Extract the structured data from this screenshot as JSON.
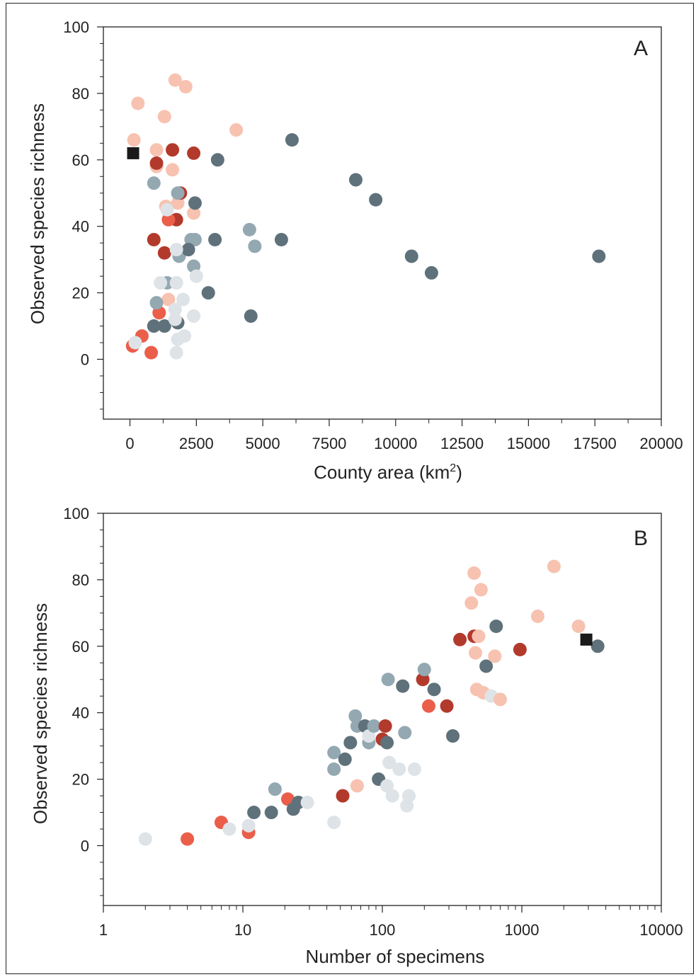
{
  "colors": {
    "light_gray": "#dde3e7",
    "blue_gray": "#94a8b2",
    "dark_slate": "#5f717a",
    "pale_salmon": "#f7c2b0",
    "coral": "#ea5e4a",
    "dark_red": "#b23a2c",
    "reference": "#1a1a1a"
  },
  "chart_data": [
    {
      "type": "scatter",
      "panel": "A",
      "xlabel": "County area (km",
      "xlabel_sup": "2",
      "xlabel_end": ")",
      "ylabel": "Observed species richness",
      "xlim": [
        -1000,
        20000
      ],
      "ylim": [
        -18,
        100
      ],
      "x_ticks": [
        "0",
        "2500",
        "5000",
        "7500",
        "10000",
        "12500",
        "15000",
        "17500",
        "20000"
      ],
      "y_ticks": [
        "0",
        "20",
        "40",
        "60",
        "80",
        "100"
      ],
      "points": [
        {
          "x": 300,
          "y": 77,
          "c": "pale_salmon"
        },
        {
          "x": 150,
          "y": 66,
          "c": "pale_salmon"
        },
        {
          "x": 1300,
          "y": 73,
          "c": "pale_salmon"
        },
        {
          "x": 1700,
          "y": 84,
          "c": "pale_salmon"
        },
        {
          "x": 2100,
          "y": 82,
          "c": "pale_salmon"
        },
        {
          "x": 4000,
          "y": 69,
          "c": "pale_salmon"
        },
        {
          "x": 1000,
          "y": 63,
          "c": "pale_salmon"
        },
        {
          "x": 1000,
          "y": 58,
          "c": "pale_salmon"
        },
        {
          "x": 1600,
          "y": 57,
          "c": "pale_salmon"
        },
        {
          "x": 1800,
          "y": 47,
          "c": "pale_salmon"
        },
        {
          "x": 1350,
          "y": 46,
          "c": "pale_salmon"
        },
        {
          "x": 2400,
          "y": 44,
          "c": "pale_salmon"
        },
        {
          "x": 1450,
          "y": 18,
          "c": "pale_salmon"
        },
        {
          "x": 1000,
          "y": 59,
          "c": "dark_red"
        },
        {
          "x": 1600,
          "y": 63,
          "c": "dark_red"
        },
        {
          "x": 2400,
          "y": 62,
          "c": "dark_red"
        },
        {
          "x": 1900,
          "y": 50,
          "c": "dark_red"
        },
        {
          "x": 1750,
          "y": 42,
          "c": "dark_red"
        },
        {
          "x": 900,
          "y": 36,
          "c": "dark_red"
        },
        {
          "x": 1300,
          "y": 32,
          "c": "dark_red"
        },
        {
          "x": 1450,
          "y": 42,
          "c": "coral"
        },
        {
          "x": 1100,
          "y": 14,
          "c": "coral"
        },
        {
          "x": 100,
          "y": 4,
          "c": "coral"
        },
        {
          "x": 450,
          "y": 7,
          "c": "coral"
        },
        {
          "x": 800,
          "y": 2,
          "c": "coral"
        },
        {
          "x": 900,
          "y": 53,
          "c": "blue_gray"
        },
        {
          "x": 1800,
          "y": 50,
          "c": "blue_gray"
        },
        {
          "x": 2300,
          "y": 36,
          "c": "blue_gray"
        },
        {
          "x": 2450,
          "y": 36,
          "c": "blue_gray"
        },
        {
          "x": 1850,
          "y": 31,
          "c": "blue_gray"
        },
        {
          "x": 2400,
          "y": 28,
          "c": "blue_gray"
        },
        {
          "x": 1400,
          "y": 23,
          "c": "blue_gray"
        },
        {
          "x": 1000,
          "y": 17,
          "c": "blue_gray"
        },
        {
          "x": 4500,
          "y": 39,
          "c": "blue_gray"
        },
        {
          "x": 4700,
          "y": 34,
          "c": "blue_gray"
        },
        {
          "x": 6100,
          "y": 66,
          "c": "dark_slate"
        },
        {
          "x": 3300,
          "y": 60,
          "c": "dark_slate"
        },
        {
          "x": 2450,
          "y": 47,
          "c": "dark_slate"
        },
        {
          "x": 3200,
          "y": 36,
          "c": "dark_slate"
        },
        {
          "x": 2200,
          "y": 33,
          "c": "dark_slate"
        },
        {
          "x": 5700,
          "y": 36,
          "c": "dark_slate"
        },
        {
          "x": 8500,
          "y": 54,
          "c": "dark_slate"
        },
        {
          "x": 9250,
          "y": 48,
          "c": "dark_slate"
        },
        {
          "x": 10600,
          "y": 31,
          "c": "dark_slate"
        },
        {
          "x": 11350,
          "y": 26,
          "c": "dark_slate"
        },
        {
          "x": 17650,
          "y": 31,
          "c": "dark_slate"
        },
        {
          "x": 2950,
          "y": 20,
          "c": "dark_slate"
        },
        {
          "x": 4550,
          "y": 13,
          "c": "dark_slate"
        },
        {
          "x": 900,
          "y": 10,
          "c": "dark_slate"
        },
        {
          "x": 1300,
          "y": 10,
          "c": "dark_slate"
        },
        {
          "x": 1800,
          "y": 11,
          "c": "dark_slate"
        },
        {
          "x": 1400,
          "y": 45,
          "c": "light_gray"
        },
        {
          "x": 1750,
          "y": 33,
          "c": "light_gray"
        },
        {
          "x": 1150,
          "y": 23,
          "c": "light_gray"
        },
        {
          "x": 1750,
          "y": 23,
          "c": "light_gray"
        },
        {
          "x": 2500,
          "y": 25,
          "c": "light_gray"
        },
        {
          "x": 2000,
          "y": 18,
          "c": "light_gray"
        },
        {
          "x": 1700,
          "y": 15,
          "c": "light_gray"
        },
        {
          "x": 1700,
          "y": 12,
          "c": "light_gray"
        },
        {
          "x": 2400,
          "y": 13,
          "c": "light_gray"
        },
        {
          "x": 2050,
          "y": 7,
          "c": "light_gray"
        },
        {
          "x": 1800,
          "y": 6,
          "c": "light_gray"
        },
        {
          "x": 1750,
          "y": 2,
          "c": "light_gray"
        },
        {
          "x": 200,
          "y": 5,
          "c": "light_gray"
        }
      ],
      "reference_point": {
        "x": 120,
        "y": 62
      }
    },
    {
      "type": "scatter",
      "panel": "B",
      "xlabel": "Number of specimens",
      "ylabel": "Observed species richness",
      "xscale": "log",
      "xlim": [
        1,
        10000
      ],
      "ylim": [
        -18,
        100
      ],
      "x_ticks": [
        "1",
        "10",
        "100",
        "1000",
        "10000"
      ],
      "y_ticks": [
        "0",
        "20",
        "40",
        "60",
        "80",
        "100"
      ],
      "points": [
        {
          "x": 2,
          "y": 2,
          "c": "light_gray"
        },
        {
          "x": 4,
          "y": 2,
          "c": "coral"
        },
        {
          "x": 7,
          "y": 7,
          "c": "coral"
        },
        {
          "x": 8,
          "y": 5,
          "c": "light_gray"
        },
        {
          "x": 11,
          "y": 4,
          "c": "coral"
        },
        {
          "x": 11,
          "y": 6,
          "c": "light_gray"
        },
        {
          "x": 12,
          "y": 10,
          "c": "dark_slate"
        },
        {
          "x": 16,
          "y": 10,
          "c": "dark_slate"
        },
        {
          "x": 17,
          "y": 17,
          "c": "blue_gray"
        },
        {
          "x": 21,
          "y": 14,
          "c": "coral"
        },
        {
          "x": 23,
          "y": 11,
          "c": "dark_slate"
        },
        {
          "x": 25,
          "y": 13,
          "c": "dark_slate"
        },
        {
          "x": 29,
          "y": 13,
          "c": "light_gray"
        },
        {
          "x": 45,
          "y": 7,
          "c": "light_gray"
        },
        {
          "x": 45,
          "y": 28,
          "c": "blue_gray"
        },
        {
          "x": 45,
          "y": 23,
          "c": "blue_gray"
        },
        {
          "x": 52,
          "y": 15,
          "c": "dark_red"
        },
        {
          "x": 54,
          "y": 26,
          "c": "dark_slate"
        },
        {
          "x": 59,
          "y": 31,
          "c": "dark_slate"
        },
        {
          "x": 64,
          "y": 39,
          "c": "blue_gray"
        },
        {
          "x": 66,
          "y": 36,
          "c": "blue_gray"
        },
        {
          "x": 66,
          "y": 18,
          "c": "pale_salmon"
        },
        {
          "x": 75,
          "y": 36,
          "c": "dark_slate"
        },
        {
          "x": 80,
          "y": 31,
          "c": "blue_gray"
        },
        {
          "x": 80,
          "y": 33,
          "c": "light_gray"
        },
        {
          "x": 87,
          "y": 36,
          "c": "blue_gray"
        },
        {
          "x": 94,
          "y": 20,
          "c": "dark_slate"
        },
        {
          "x": 100,
          "y": 32,
          "c": "dark_red"
        },
        {
          "x": 105,
          "y": 36,
          "c": "dark_red"
        },
        {
          "x": 108,
          "y": 31,
          "c": "dark_slate"
        },
        {
          "x": 110,
          "y": 50,
          "c": "blue_gray"
        },
        {
          "x": 108,
          "y": 18,
          "c": "light_gray"
        },
        {
          "x": 112,
          "y": 25,
          "c": "light_gray"
        },
        {
          "x": 118,
          "y": 15,
          "c": "light_gray"
        },
        {
          "x": 132,
          "y": 23,
          "c": "light_gray"
        },
        {
          "x": 140,
          "y": 48,
          "c": "dark_slate"
        },
        {
          "x": 145,
          "y": 34,
          "c": "blue_gray"
        },
        {
          "x": 150,
          "y": 12,
          "c": "light_gray"
        },
        {
          "x": 155,
          "y": 15,
          "c": "light_gray"
        },
        {
          "x": 170,
          "y": 23,
          "c": "light_gray"
        },
        {
          "x": 195,
          "y": 50,
          "c": "dark_red"
        },
        {
          "x": 200,
          "y": 53,
          "c": "blue_gray"
        },
        {
          "x": 215,
          "y": 42,
          "c": "coral"
        },
        {
          "x": 235,
          "y": 47,
          "c": "dark_slate"
        },
        {
          "x": 290,
          "y": 42,
          "c": "dark_red"
        },
        {
          "x": 320,
          "y": 33,
          "c": "dark_slate"
        },
        {
          "x": 360,
          "y": 62,
          "c": "dark_red"
        },
        {
          "x": 435,
          "y": 73,
          "c": "pale_salmon"
        },
        {
          "x": 455,
          "y": 82,
          "c": "pale_salmon"
        },
        {
          "x": 455,
          "y": 63,
          "c": "dark_red"
        },
        {
          "x": 465,
          "y": 58,
          "c": "pale_salmon"
        },
        {
          "x": 475,
          "y": 47,
          "c": "pale_salmon"
        },
        {
          "x": 490,
          "y": 63,
          "c": "pale_salmon"
        },
        {
          "x": 510,
          "y": 77,
          "c": "pale_salmon"
        },
        {
          "x": 530,
          "y": 46,
          "c": "pale_salmon"
        },
        {
          "x": 555,
          "y": 54,
          "c": "dark_slate"
        },
        {
          "x": 605,
          "y": 45,
          "c": "light_gray"
        },
        {
          "x": 640,
          "y": 57,
          "c": "pale_salmon"
        },
        {
          "x": 655,
          "y": 66,
          "c": "dark_slate"
        },
        {
          "x": 700,
          "y": 44,
          "c": "pale_salmon"
        },
        {
          "x": 970,
          "y": 59,
          "c": "dark_red"
        },
        {
          "x": 1300,
          "y": 69,
          "c": "pale_salmon"
        },
        {
          "x": 1700,
          "y": 84,
          "c": "pale_salmon"
        },
        {
          "x": 2550,
          "y": 66,
          "c": "pale_salmon"
        },
        {
          "x": 3500,
          "y": 60,
          "c": "dark_slate"
        }
      ],
      "reference_point": {
        "x": 2900,
        "y": 62
      }
    }
  ],
  "panel_labels": [
    "A",
    "B"
  ]
}
